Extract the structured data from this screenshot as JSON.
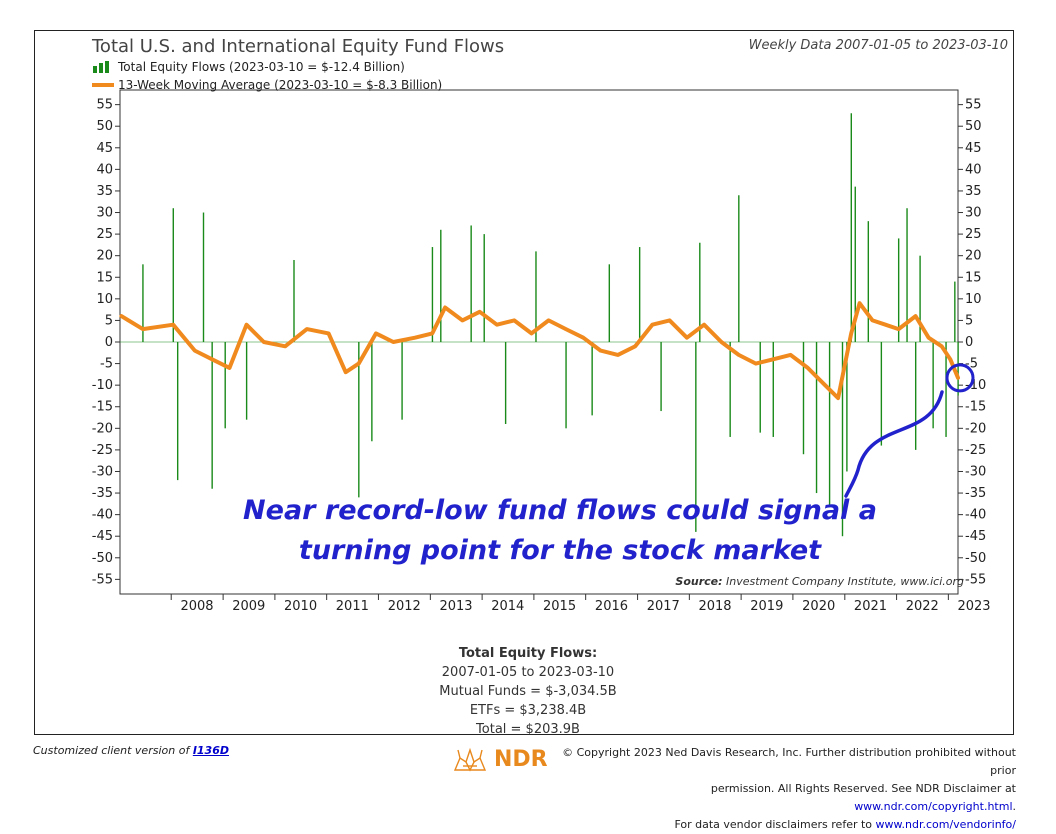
{
  "header": {
    "title": "Total U.S. and International Equity Fund Flows",
    "range_note": "Weekly Data 2007-01-05 to 2023-03-10"
  },
  "legend": {
    "bars": "Total Equity Flows (2023-03-10 = $-12.4 Billion)",
    "line": "13-Week Moving Average (2023-03-10 = $-8.3 Billion)"
  },
  "annotation": {
    "line1": "Near record-low fund flows could signal a",
    "line2": "turning point for the stock market",
    "color": "#2222cc"
  },
  "source": {
    "label": "Source:",
    "text": "Investment Company Institute, www.ici.org"
  },
  "summary": {
    "head": "Total Equity Flows:",
    "range": "2007-01-05 to 2023-03-10",
    "mutual": "Mutual Funds = $-3,034.5B",
    "etfs": "ETFs = $3,238.4B",
    "total": "Total = $203.9B"
  },
  "footer": {
    "custom_prefix": "Customized client version of ",
    "custom_link": "I136D",
    "copyright_1": "© Copyright 2023 Ned Davis Research, Inc. Further distribution prohibited without prior",
    "copyright_2a": "permission. All Rights Reserved. See NDR Disclaimer at ",
    "copyright_2b": "www.ndr.com/copyright.html",
    "copyright_2c": ".",
    "copyright_3a": "For data vendor disclaimers refer to ",
    "copyright_3b": "www.ndr.com/vendorinfo/",
    "logo_text": "NDR"
  },
  "colors": {
    "bars": "#1a8a1a",
    "line": "#f08a1e",
    "annotation": "#2222cc",
    "logo": "#e8891e"
  },
  "chart_data": {
    "type": "bar",
    "x_type": "date",
    "x_start": "2007-01-05",
    "x_end": "2023-03-10",
    "x_ticks": [
      "2008",
      "2009",
      "2010",
      "2011",
      "2012",
      "2013",
      "2014",
      "2015",
      "2016",
      "2017",
      "2018",
      "2019",
      "2020",
      "2021",
      "2022",
      "2023"
    ],
    "y_ticks": [
      55,
      50,
      45,
      40,
      35,
      30,
      25,
      20,
      15,
      10,
      5,
      0,
      -5,
      -10,
      -15,
      -20,
      -25,
      -30,
      -35,
      -40,
      -45,
      -50,
      -55
    ],
    "ylim": [
      -57,
      57
    ],
    "grid": false,
    "legend_position": "top-left",
    "series": [
      {
        "name": "Total Equity Flows (2023-03-10 = $-12.4 Billion)",
        "type": "bar",
        "x": [
          "2007-06",
          "2008-01",
          "2008-02",
          "2008-08",
          "2008-10",
          "2009-01",
          "2009-06",
          "2010-05",
          "2011-08",
          "2011-11",
          "2012-06",
          "2013-01",
          "2013-03",
          "2013-10",
          "2014-01",
          "2014-06",
          "2015-01",
          "2015-08",
          "2016-02",
          "2016-06",
          "2017-01",
          "2017-06",
          "2018-02",
          "2018-03",
          "2018-10",
          "2018-12",
          "2019-05",
          "2019-08",
          "2020-03",
          "2020-06",
          "2020-09",
          "2020-12",
          "2021-01",
          "2021-02",
          "2021-03",
          "2021-06",
          "2021-09",
          "2022-01",
          "2022-03",
          "2022-05",
          "2022-06",
          "2022-09",
          "2022-12",
          "2023-02",
          "2023-03-10"
        ],
        "values": [
          18,
          31,
          -32,
          30,
          -34,
          -20,
          -18,
          19,
          -36,
          -23,
          -18,
          22,
          26,
          27,
          25,
          -19,
          21,
          -20,
          -17,
          18,
          22,
          -16,
          -44,
          23,
          -22,
          34,
          -21,
          -22,
          -26,
          -35,
          -38,
          -45,
          -30,
          53,
          36,
          28,
          -24,
          24,
          31,
          -25,
          20,
          -20,
          -22,
          14,
          -12.4
        ]
      },
      {
        "name": "13-Week Moving Average (2023-03-10 = $-8.3 Billion)",
        "type": "line",
        "x": [
          "2007-01",
          "2007-06",
          "2008-01",
          "2008-06",
          "2008-10",
          "2009-02",
          "2009-06",
          "2009-10",
          "2010-03",
          "2010-08",
          "2011-01",
          "2011-05",
          "2011-08",
          "2011-12",
          "2012-04",
          "2012-09",
          "2013-01",
          "2013-04",
          "2013-08",
          "2013-12",
          "2014-04",
          "2014-08",
          "2014-12",
          "2015-04",
          "2015-08",
          "2015-12",
          "2016-04",
          "2016-08",
          "2016-12",
          "2017-04",
          "2017-08",
          "2017-12",
          "2018-04",
          "2018-08",
          "2018-12",
          "2019-04",
          "2019-08",
          "2019-12",
          "2020-04",
          "2020-08",
          "2020-11",
          "2021-02",
          "2021-04",
          "2021-07",
          "2021-10",
          "2022-01",
          "2022-05",
          "2022-08",
          "2022-11",
          "2023-01",
          "2023-03-10"
        ],
        "values": [
          6,
          3,
          4,
          -2,
          -4,
          -6,
          4,
          0,
          -1,
          3,
          2,
          -7,
          -5,
          2,
          0,
          1,
          2,
          8,
          5,
          7,
          4,
          5,
          2,
          5,
          3,
          1,
          -2,
          -3,
          -1,
          4,
          5,
          1,
          4,
          0,
          -3,
          -5,
          -4,
          -3,
          -6,
          -10,
          -13,
          2,
          9,
          5,
          4,
          3,
          6,
          1,
          -1,
          -4,
          -8.3
        ]
      }
    ]
  }
}
